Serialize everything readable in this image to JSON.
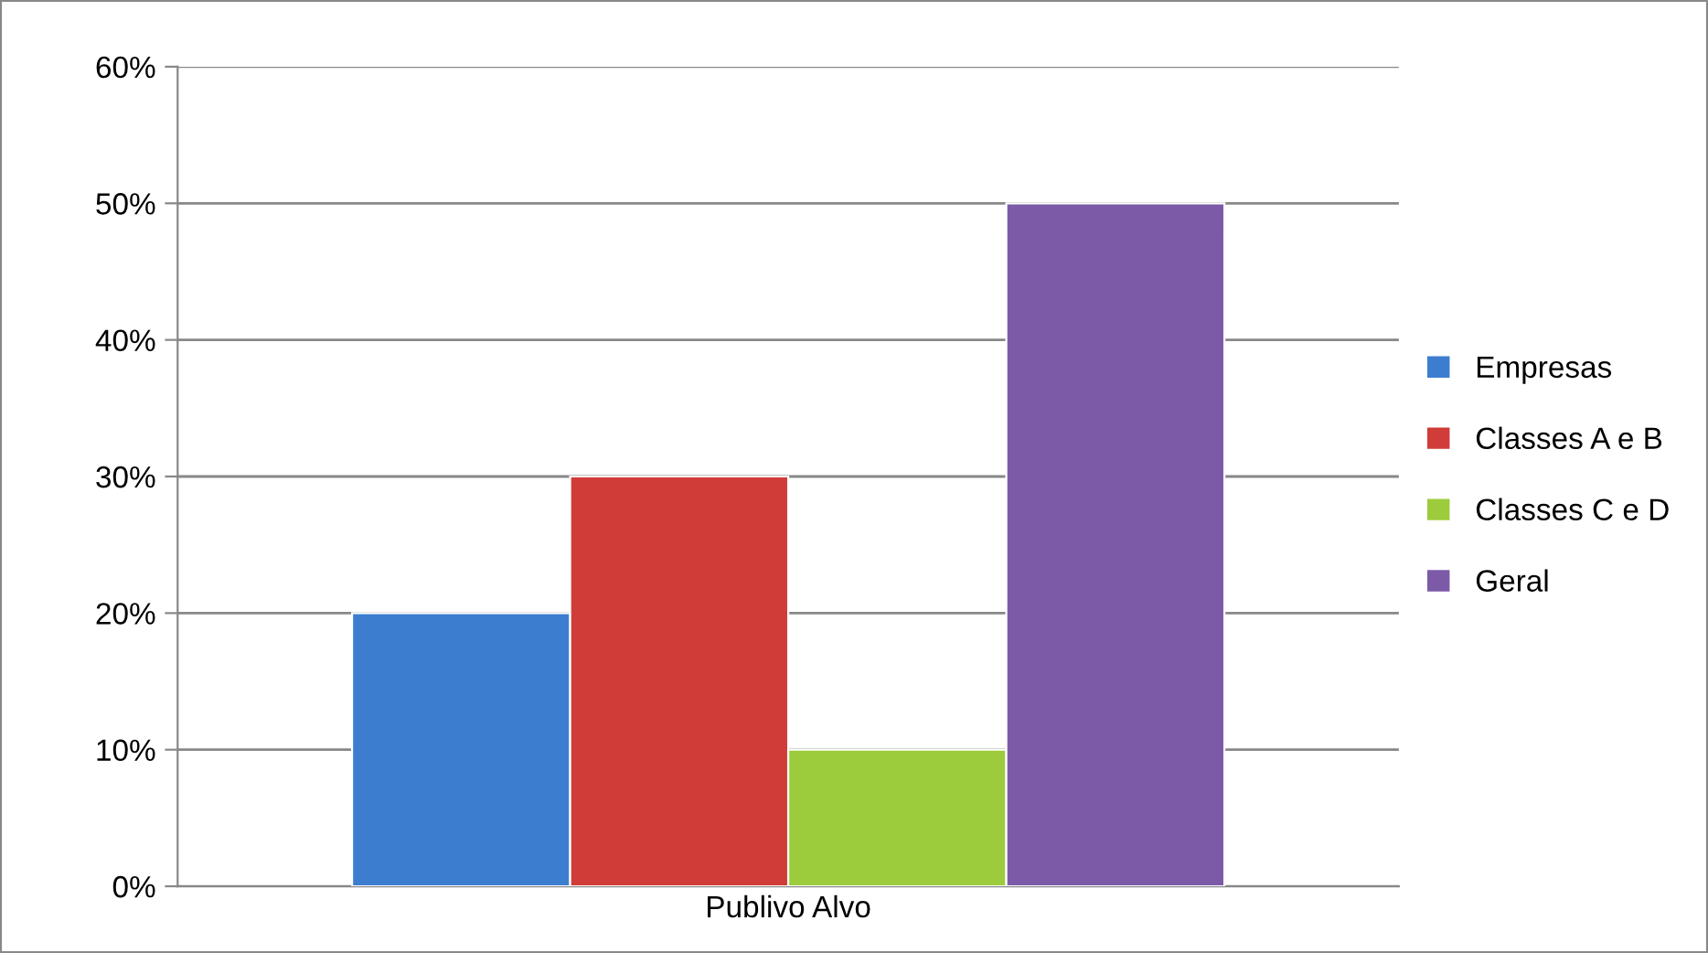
{
  "chart_data": {
    "type": "bar",
    "categories": [
      "Publivo Alvo"
    ],
    "series": [
      {
        "name": "Empresas",
        "color": "#3c7dd0",
        "values": [
          20
        ]
      },
      {
        "name": "Classes A e B",
        "color": "#d03c38",
        "values": [
          30
        ]
      },
      {
        "name": "Classes C e D",
        "color": "#9ccc3c",
        "values": [
          10
        ]
      },
      {
        "name": "Geral",
        "color": "#7d5aa8",
        "values": [
          50
        ]
      }
    ],
    "ylim": [
      0,
      60
    ],
    "yticks": [
      {
        "value": 0,
        "label": "0%"
      },
      {
        "value": 10,
        "label": "10%"
      },
      {
        "value": 20,
        "label": "20%"
      },
      {
        "value": 30,
        "label": "30%"
      },
      {
        "value": 40,
        "label": "40%"
      },
      {
        "value": 50,
        "label": "50%"
      },
      {
        "value": 60,
        "label": "60%"
      }
    ],
    "grid": "y",
    "legend": "right"
  }
}
